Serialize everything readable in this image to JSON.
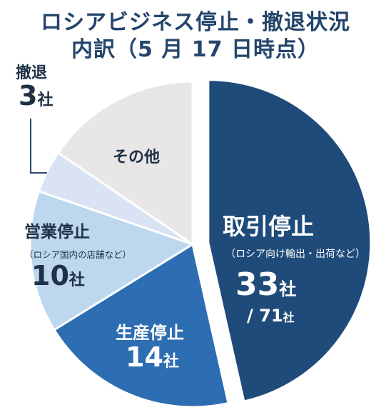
{
  "title_line1": "ロシアビジネス停止・撤退状況",
  "title_line2": "内訳（5 月 17 日時点）",
  "chart_data": {
    "type": "pie",
    "title": "ロシアビジネス停止・撤退状況 内訳（5 月 17 日時点）",
    "total": 71,
    "unit": "社",
    "slices": [
      {
        "label": "取引停止",
        "sublabel": "（ロシア向け輸出・出荷など）",
        "value": 33,
        "color": "#1f4b7a",
        "exploded": true
      },
      {
        "label": "生産停止",
        "sublabel": "",
        "value": 14,
        "color": "#2d6db1",
        "exploded": false
      },
      {
        "label": "営業停止",
        "sublabel": "（ロシア国内の店舗など）",
        "value": 10,
        "color": "#bdd7ee",
        "exploded": false
      },
      {
        "label": "撤退",
        "sublabel": "",
        "value": 3,
        "color": "#dae3f3",
        "exploded": false
      },
      {
        "label": "その他",
        "sublabel": "",
        "value": 11,
        "color": "#e8e6e6",
        "exploded": false
      }
    ]
  },
  "labels": {
    "torihiki_value": "33",
    "torihiki_total": "/ 71",
    "seisan_value": "14",
    "eigyo_value": "10",
    "tettai_value": "3",
    "unit": "社"
  }
}
